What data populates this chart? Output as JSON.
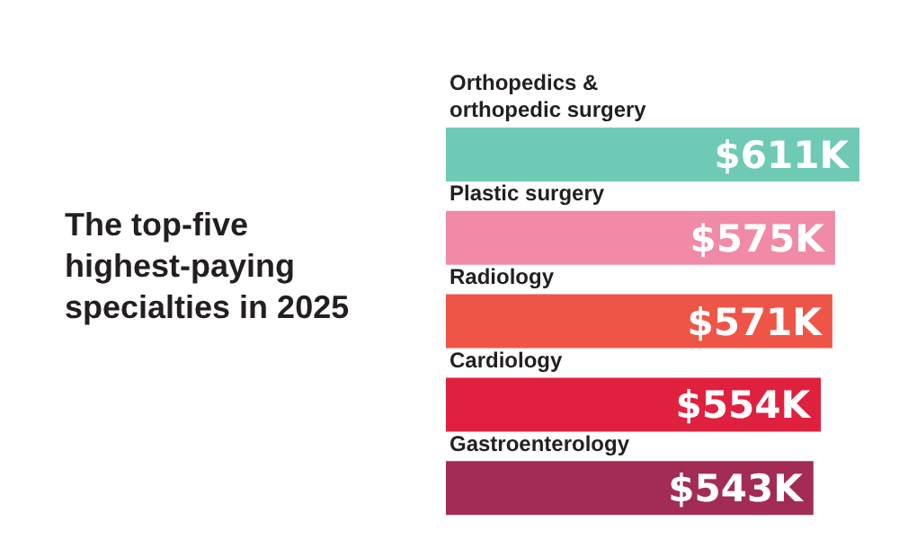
{
  "chart_data": {
    "type": "bar",
    "orientation": "horizontal",
    "title": "The top-five highest-paying specialties in 2025",
    "categories": [
      "Orthopedics & orthopedic surgery",
      "Plastic surgery",
      "Radiology",
      "Cardiology",
      "Gastroenterology"
    ],
    "values": [
      611,
      575,
      571,
      554,
      543
    ],
    "colors": [
      "#6ecab4",
      "#f08aa6",
      "#ef5547",
      "#e0203f",
      "#a32c57"
    ],
    "value_labels": [
      "$611K",
      "$575K",
      "$571K",
      "$554K",
      "$543K"
    ]
  }
}
